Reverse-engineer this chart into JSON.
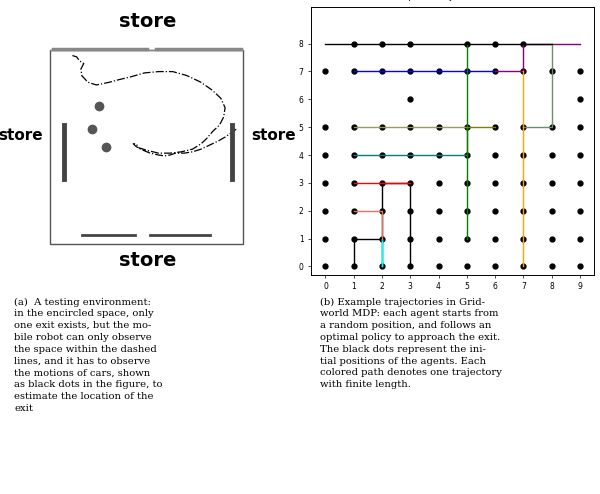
{
  "title": "Example of trajectories in MDP",
  "xlim": [
    0,
    9
  ],
  "ylim": [
    0,
    9
  ],
  "dot_positions": [
    [
      1,
      8
    ],
    [
      2,
      8
    ],
    [
      3,
      8
    ],
    [
      5,
      8
    ],
    [
      6,
      8
    ],
    [
      7,
      8
    ],
    [
      0,
      7
    ],
    [
      1,
      7
    ],
    [
      2,
      7
    ],
    [
      3,
      7
    ],
    [
      4,
      7
    ],
    [
      5,
      7
    ],
    [
      6,
      7
    ],
    [
      7,
      7
    ],
    [
      8,
      7
    ],
    [
      9,
      7
    ],
    [
      3,
      6
    ],
    [
      9,
      6
    ],
    [
      0,
      5
    ],
    [
      1,
      5
    ],
    [
      2,
      5
    ],
    [
      3,
      5
    ],
    [
      4,
      5
    ],
    [
      5,
      5
    ],
    [
      6,
      5
    ],
    [
      7,
      5
    ],
    [
      8,
      5
    ],
    [
      9,
      5
    ],
    [
      0,
      4
    ],
    [
      1,
      4
    ],
    [
      2,
      4
    ],
    [
      3,
      4
    ],
    [
      4,
      4
    ],
    [
      5,
      4
    ],
    [
      6,
      4
    ],
    [
      7,
      4
    ],
    [
      8,
      4
    ],
    [
      9,
      4
    ],
    [
      0,
      3
    ],
    [
      1,
      3
    ],
    [
      2,
      3
    ],
    [
      3,
      3
    ],
    [
      4,
      3
    ],
    [
      5,
      3
    ],
    [
      6,
      3
    ],
    [
      7,
      3
    ],
    [
      8,
      3
    ],
    [
      9,
      3
    ],
    [
      0,
      2
    ],
    [
      1,
      2
    ],
    [
      2,
      2
    ],
    [
      3,
      2
    ],
    [
      4,
      2
    ],
    [
      5,
      2
    ],
    [
      6,
      2
    ],
    [
      7,
      2
    ],
    [
      8,
      2
    ],
    [
      9,
      2
    ],
    [
      0,
      1
    ],
    [
      1,
      1
    ],
    [
      2,
      1
    ],
    [
      3,
      1
    ],
    [
      4,
      1
    ],
    [
      5,
      1
    ],
    [
      6,
      1
    ],
    [
      7,
      1
    ],
    [
      8,
      1
    ],
    [
      9,
      1
    ],
    [
      0,
      0
    ],
    [
      1,
      0
    ],
    [
      2,
      0
    ],
    [
      3,
      0
    ],
    [
      4,
      0
    ],
    [
      5,
      0
    ],
    [
      6,
      0
    ],
    [
      7,
      0
    ],
    [
      8,
      0
    ],
    [
      9,
      0
    ]
  ],
  "trajectories": [
    {
      "color": "black",
      "points": [
        [
          1,
          0
        ],
        [
          1,
          1
        ],
        [
          2,
          1
        ],
        [
          2,
          0
        ]
      ]
    },
    {
      "color": "cyan",
      "points": [
        [
          2,
          0
        ],
        [
          2,
          1
        ],
        [
          2,
          0
        ]
      ]
    },
    {
      "color": "black",
      "points": [
        [
          2,
          1
        ],
        [
          2,
          2
        ],
        [
          2,
          3
        ],
        [
          3,
          3
        ],
        [
          3,
          2
        ],
        [
          3,
          1
        ],
        [
          3,
          0
        ]
      ]
    },
    {
      "color": "red",
      "points": [
        [
          1,
          3
        ],
        [
          3,
          3
        ]
      ]
    },
    {
      "color": "#E87060",
      "points": [
        [
          1,
          2
        ],
        [
          2,
          2
        ],
        [
          2,
          1
        ]
      ]
    },
    {
      "color": "blue",
      "points": [
        [
          1,
          7
        ],
        [
          6,
          7
        ]
      ]
    },
    {
      "color": "purple",
      "points": [
        [
          6,
          7
        ],
        [
          7,
          7
        ],
        [
          7,
          8
        ],
        [
          8,
          8
        ],
        [
          9,
          8
        ]
      ]
    },
    {
      "color": "#999966",
      "points": [
        [
          1,
          5
        ],
        [
          3,
          5
        ],
        [
          5,
          5
        ],
        [
          5,
          5
        ]
      ]
    },
    {
      "color": "#6B8E6B",
      "points": [
        [
          7,
          5
        ],
        [
          8,
          5
        ],
        [
          8,
          7
        ],
        [
          8,
          8
        ]
      ]
    },
    {
      "color": "teal",
      "points": [
        [
          1,
          4
        ],
        [
          5,
          4
        ]
      ]
    },
    {
      "color": "#808000",
      "points": [
        [
          5,
          4
        ],
        [
          5,
          5
        ]
      ]
    },
    {
      "color": "green",
      "points": [
        [
          5,
          1
        ],
        [
          5,
          2
        ],
        [
          5,
          3
        ],
        [
          5,
          4
        ],
        [
          5,
          5
        ],
        [
          5,
          6
        ],
        [
          5,
          7
        ],
        [
          5,
          8
        ]
      ]
    },
    {
      "color": "orange",
      "points": [
        [
          7,
          0
        ],
        [
          7,
          3
        ],
        [
          7,
          5
        ],
        [
          7,
          7
        ]
      ]
    },
    {
      "color": "black",
      "points": [
        [
          0,
          8
        ],
        [
          8,
          8
        ]
      ]
    },
    {
      "color": "#808000",
      "points": [
        [
          5,
          5
        ],
        [
          6,
          5
        ]
      ]
    }
  ],
  "left_bg_color": "#00DD00",
  "caption_left": "(a)  A testing environment:\nin the encircled space, only\none exit exists, but the mo-\nbile robot can only observe\nthe space within the dashed\nlines, and it has to observe\nthe motions of cars, shown\nas black dots in the figure, to\nestimate the location of the\nexit",
  "caption_right": "(b) Example trajectories in Grid-\nworld MDP: each agent starts from\na random position, and follows an\noptimal policy to approach the exit.\nThe black dots represent the ini-\ntial positions of the agents. Each\ncolored path denotes one trajectory\nwith finite length."
}
